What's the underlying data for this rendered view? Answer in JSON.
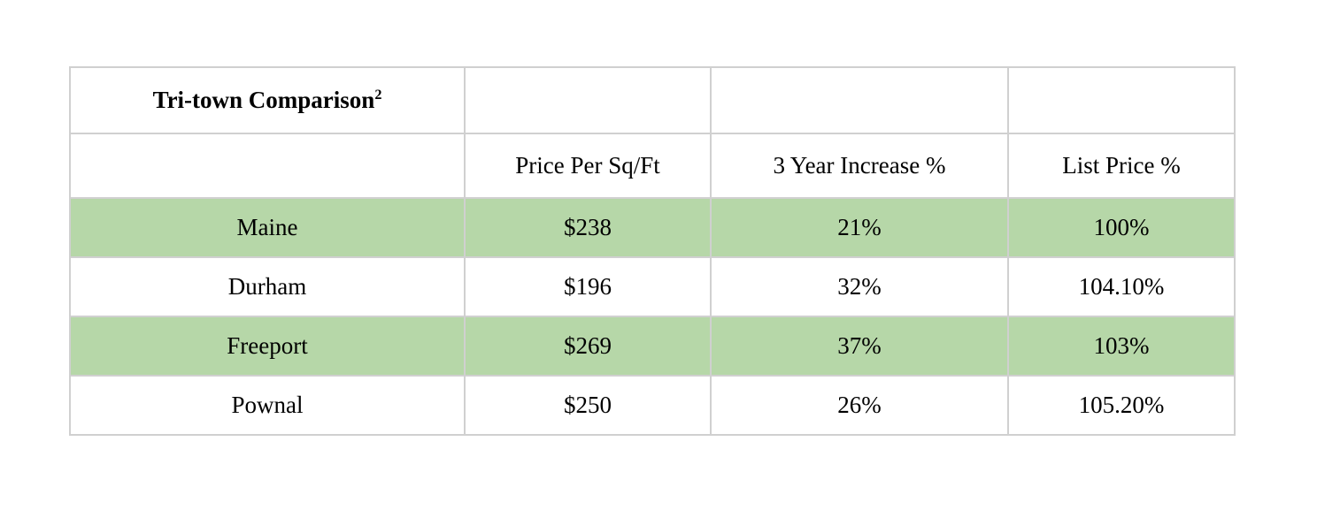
{
  "table": {
    "title": "Tri-town Comparison",
    "title_superscript": "2",
    "headers": {
      "row_label": "",
      "price_per_sqft": "Price Per Sq/Ft",
      "three_year_increase": "3 Year Increase %",
      "list_price": "List Price %"
    },
    "rows": [
      {
        "name": "Maine",
        "price_per_sqft": "$238",
        "three_year_increase": "21%",
        "list_price": "100%",
        "highlighted": true
      },
      {
        "name": "Durham",
        "price_per_sqft": "$196",
        "three_year_increase": "32%",
        "list_price": "104.10%",
        "highlighted": false
      },
      {
        "name": "Freeport",
        "price_per_sqft": "$269",
        "three_year_increase": "37%",
        "list_price": "103%",
        "highlighted": true
      },
      {
        "name": "Pownal",
        "price_per_sqft": "$250",
        "three_year_increase": "26%",
        "list_price": "105.20%",
        "highlighted": false
      }
    ],
    "colors": {
      "highlight": "#b6d7a8",
      "border": "#d0d0d0",
      "text": "#000000"
    }
  }
}
